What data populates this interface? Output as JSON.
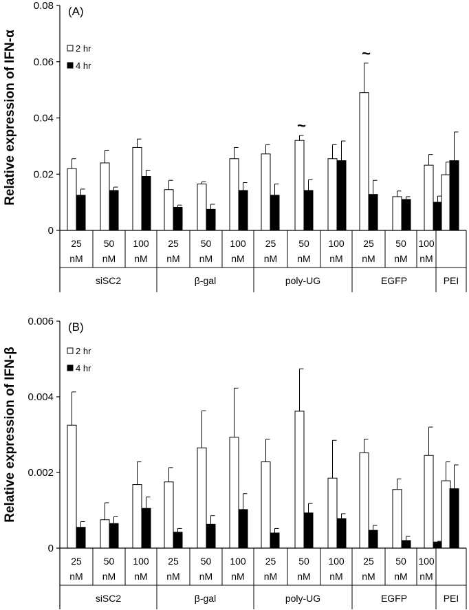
{
  "chart_data": [
    {
      "type": "bar",
      "panel_label": "(A)",
      "ylabel": "Relative expression of IFN-α",
      "ylim": [
        0,
        0.08
      ],
      "yticks": [
        "0",
        "0.02",
        "0.04",
        "0.06",
        "0.08"
      ],
      "ytick_values": [
        0,
        0.02,
        0.04,
        0.06,
        0.08
      ],
      "concentration_labels": [
        "25",
        "50",
        "100",
        "25",
        "50",
        "100",
        "25",
        "50",
        "100",
        "25",
        "50",
        "100",
        ""
      ],
      "unit_labels": [
        "nM",
        "nM",
        "nM",
        "nM",
        "nM",
        "nM",
        "nM",
        "nM",
        "nM",
        "nM",
        "nM",
        "nM",
        ""
      ],
      "groups": [
        {
          "label": "siSC2",
          "span": 3
        },
        {
          "label": "β-gal",
          "span": 3
        },
        {
          "label": "poly-UG",
          "span": 3
        },
        {
          "label": "EGFP",
          "span": 3
        },
        {
          "label": "PEI",
          "span": 1
        }
      ],
      "series": [
        {
          "name": "2 hr",
          "fill": "white",
          "values": [
            0.022,
            0.024,
            0.0295,
            0.0145,
            0.0165,
            0.0255,
            0.0272,
            0.032,
            0.0255,
            0.049,
            0.012,
            0.0232,
            0.0198
          ],
          "errors": [
            0.0035,
            0.0045,
            0.003,
            0.0033,
            0.0008,
            0.004,
            0.0033,
            0.0018,
            0.005,
            0.0105,
            0.002,
            0.0038,
            0.0045
          ]
        },
        {
          "name": "4 hr",
          "fill": "black",
          "values": [
            0.0125,
            0.0142,
            0.0192,
            0.0082,
            0.0075,
            0.0142,
            0.0125,
            0.0142,
            0.0248,
            0.0128,
            0.011,
            0.01,
            0.0248
          ],
          "errors": [
            0.0022,
            0.0012,
            0.0022,
            0.0008,
            0.0018,
            0.0028,
            0.004,
            0.0038,
            0.007,
            0.005,
            0.001,
            0.0022,
            0.0102
          ]
        }
      ],
      "annotations": [
        {
          "text": "~",
          "position": 7
        },
        {
          "text": "~",
          "position": 9
        }
      ],
      "legend_position": "top-left"
    },
    {
      "type": "bar",
      "panel_label": "(B)",
      "ylabel": "Relative expression of IFN-β",
      "ylim": [
        0,
        0.006
      ],
      "yticks": [
        "0",
        "0.002",
        "0.004",
        "0.006"
      ],
      "ytick_values": [
        0,
        0.002,
        0.004,
        0.006
      ],
      "concentration_labels": [
        "25",
        "50",
        "100",
        "25",
        "50",
        "100",
        "25",
        "50",
        "100",
        "25",
        "50",
        "100",
        ""
      ],
      "unit_labels": [
        "nM",
        "nM",
        "nM",
        "nM",
        "nM",
        "nM",
        "nM",
        "nM",
        "nM",
        "nM",
        "nM",
        "nM",
        ""
      ],
      "groups": [
        {
          "label": "siSC2",
          "span": 3
        },
        {
          "label": "β-gal",
          "span": 3
        },
        {
          "label": "poly-UG",
          "span": 3
        },
        {
          "label": "EGFP",
          "span": 3
        },
        {
          "label": "PEI",
          "span": 1
        }
      ],
      "series": [
        {
          "name": "2 hr",
          "fill": "white",
          "values": [
            0.00325,
            0.00075,
            0.00168,
            0.00175,
            0.00265,
            0.00293,
            0.00228,
            0.00362,
            0.00185,
            0.00252,
            0.00155,
            0.00245,
            0.00178
          ],
          "errors": [
            0.00088,
            0.00045,
            0.0006,
            0.00038,
            0.00098,
            0.0013,
            0.0006,
            0.00112,
            0.001,
            0.00036,
            0.00028,
            0.00075,
            0.0005
          ]
        },
        {
          "name": "4 hr",
          "fill": "black",
          "values": [
            0.00055,
            0.00065,
            0.00105,
            0.00042,
            0.00063,
            0.00102,
            0.0004,
            0.00093,
            0.00078,
            0.00047,
            0.0002,
            0.00016,
            0.00157
          ],
          "errors": [
            0.00015,
            0.00018,
            0.0003,
            0.0001,
            0.00023,
            0.00042,
            0.00012,
            0.00025,
            0.00013,
            0.00013,
            0.00011,
            2e-05,
            0.00063
          ]
        }
      ],
      "annotations": [],
      "legend_position": "top-left"
    }
  ]
}
